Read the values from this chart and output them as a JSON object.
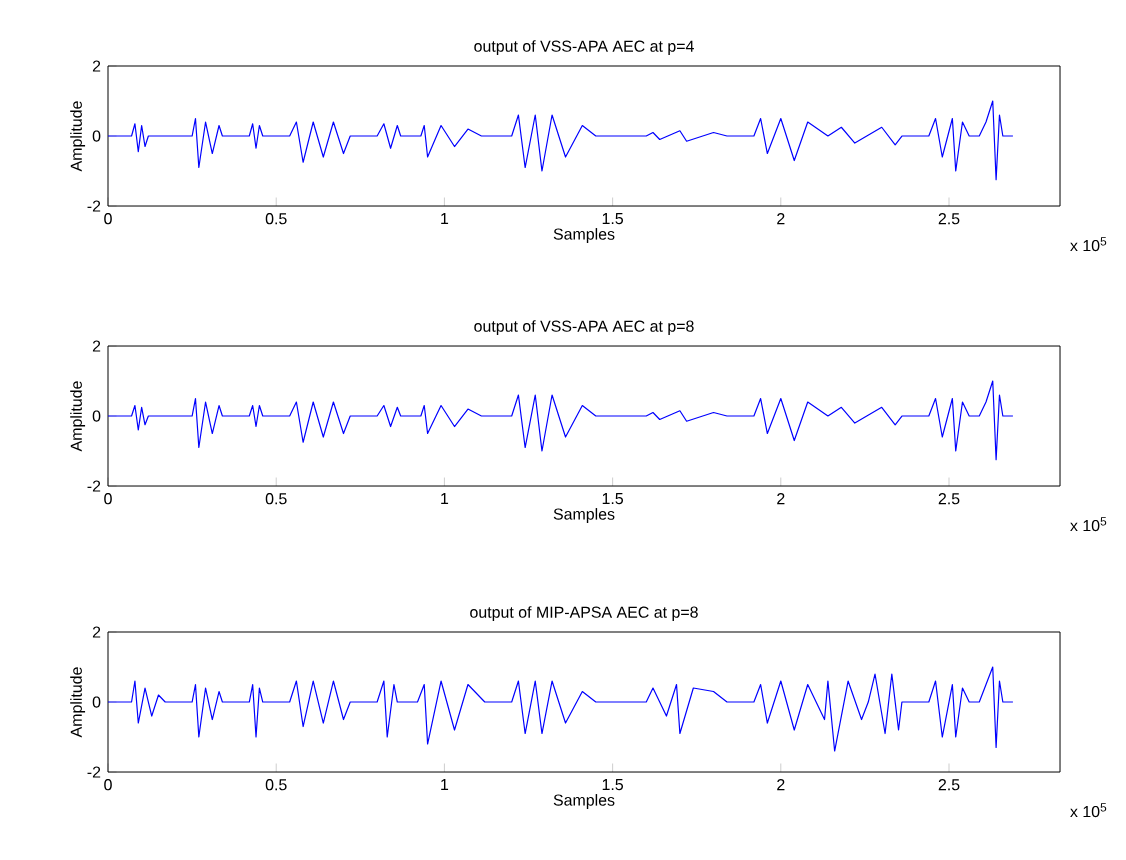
{
  "chart_data": [
    {
      "type": "line",
      "title": "output of VSS-APA AEC at p=4",
      "xlabel": "Samples",
      "ylabel": "Amplitude",
      "annotations": [
        "x 10$^{5}$"
      ],
      "xlim": [
        0,
        2.83
      ],
      "ylim": [
        -2,
        2
      ],
      "yticks": [
        -2,
        0,
        2
      ],
      "xticks": [
        0,
        0.5,
        1,
        1.5,
        2,
        2.5
      ],
      "series": [
        {
          "color": "#0000ff",
          "x": [
            0,
            0.07,
            0.08,
            0.09,
            0.1,
            0.11,
            0.12,
            0.25,
            0.26,
            0.27,
            0.29,
            0.31,
            0.33,
            0.34,
            0.42,
            0.43,
            0.44,
            0.45,
            0.46,
            0.54,
            0.56,
            0.58,
            0.61,
            0.64,
            0.67,
            0.7,
            0.72,
            0.8,
            0.82,
            0.84,
            0.86,
            0.87,
            0.93,
            0.94,
            0.95,
            0.99,
            1.03,
            1.07,
            1.11,
            1.2,
            1.22,
            1.24,
            1.27,
            1.29,
            1.32,
            1.36,
            1.41,
            1.45,
            1.6,
            1.62,
            1.64,
            1.7,
            1.72,
            1.8,
            1.84,
            1.92,
            1.94,
            1.96,
            2.0,
            2.04,
            2.08,
            2.14,
            2.18,
            2.22,
            2.3,
            2.34,
            2.36,
            2.44,
            2.46,
            2.48,
            2.51,
            2.52,
            2.54,
            2.56,
            2.59,
            2.61,
            2.63,
            2.64,
            2.65,
            2.66,
            2.69
          ],
          "values": [
            0,
            0,
            0.35,
            -0.45,
            0.3,
            -0.3,
            0,
            0,
            0.5,
            -0.9,
            0.4,
            -0.5,
            0.3,
            0,
            0,
            0.35,
            -0.35,
            0.3,
            0,
            0,
            0.4,
            -0.75,
            0.4,
            -0.6,
            0.4,
            -0.5,
            0,
            0,
            0.35,
            -0.35,
            0.3,
            0,
            0,
            0.3,
            -0.6,
            0.3,
            -0.3,
            0.2,
            0,
            0,
            0.6,
            -0.9,
            0.6,
            -1.0,
            0.6,
            -0.6,
            0.3,
            0,
            0,
            0.1,
            -0.1,
            0.15,
            -0.15,
            0.1,
            0,
            0,
            0.5,
            -0.5,
            0.5,
            -0.7,
            0.4,
            0,
            0.25,
            -0.2,
            0.25,
            -0.25,
            0,
            0,
            0.5,
            -0.6,
            0.5,
            -1.0,
            0.4,
            0,
            0,
            0.4,
            1.0,
            -1.25,
            0.6,
            0,
            0
          ]
        }
      ]
    },
    {
      "type": "line",
      "title": "output of VSS-APA AEC at p=8",
      "xlabel": "Samples",
      "ylabel": "Amplitude",
      "annotations": [
        "x 10$^{5}$"
      ],
      "xlim": [
        0,
        2.83
      ],
      "ylim": [
        -2,
        2
      ],
      "yticks": [
        -2,
        0,
        2
      ],
      "xticks": [
        0,
        0.5,
        1,
        1.5,
        2,
        2.5
      ],
      "series": [
        {
          "color": "#0000ff",
          "x": [
            0,
            0.07,
            0.08,
            0.09,
            0.1,
            0.11,
            0.12,
            0.25,
            0.26,
            0.27,
            0.29,
            0.31,
            0.33,
            0.34,
            0.42,
            0.43,
            0.44,
            0.45,
            0.46,
            0.54,
            0.56,
            0.58,
            0.61,
            0.64,
            0.67,
            0.7,
            0.72,
            0.8,
            0.82,
            0.84,
            0.86,
            0.87,
            0.93,
            0.94,
            0.95,
            0.99,
            1.03,
            1.07,
            1.11,
            1.2,
            1.22,
            1.24,
            1.27,
            1.29,
            1.32,
            1.36,
            1.41,
            1.45,
            1.6,
            1.62,
            1.64,
            1.7,
            1.72,
            1.8,
            1.84,
            1.92,
            1.94,
            1.96,
            2.0,
            2.04,
            2.08,
            2.14,
            2.18,
            2.22,
            2.3,
            2.34,
            2.36,
            2.44,
            2.46,
            2.48,
            2.51,
            2.52,
            2.54,
            2.56,
            2.59,
            2.61,
            2.63,
            2.64,
            2.65,
            2.66,
            2.69
          ],
          "values": [
            0,
            0,
            0.3,
            -0.4,
            0.25,
            -0.25,
            0,
            0,
            0.5,
            -0.9,
            0.4,
            -0.5,
            0.3,
            0,
            0,
            0.3,
            -0.3,
            0.3,
            0,
            0,
            0.4,
            -0.75,
            0.4,
            -0.6,
            0.4,
            -0.5,
            0,
            0,
            0.3,
            -0.3,
            0.25,
            0,
            0,
            0.3,
            -0.5,
            0.3,
            -0.3,
            0.2,
            0,
            0,
            0.6,
            -0.9,
            0.6,
            -1.0,
            0.6,
            -0.6,
            0.3,
            0,
            0,
            0.1,
            -0.1,
            0.15,
            -0.15,
            0.1,
            0,
            0,
            0.5,
            -0.5,
            0.5,
            -0.7,
            0.4,
            0,
            0.25,
            -0.2,
            0.25,
            -0.25,
            0,
            0,
            0.5,
            -0.6,
            0.5,
            -1.0,
            0.4,
            0,
            0,
            0.4,
            1.0,
            -1.25,
            0.6,
            0,
            0
          ]
        }
      ]
    },
    {
      "type": "line",
      "title": "output of MIP-APSA AEC at p=8",
      "xlabel": "Samples",
      "ylabel": "Amplitude",
      "annotations": [
        "x 10$^{5}$"
      ],
      "xlim": [
        0,
        2.83
      ],
      "ylim": [
        -2,
        2
      ],
      "yticks": [
        -2,
        0,
        2
      ],
      "xticks": [
        0,
        0.5,
        1,
        1.5,
        2,
        2.5
      ],
      "series": [
        {
          "color": "#0000ff",
          "x": [
            0,
            0.07,
            0.08,
            0.09,
            0.11,
            0.13,
            0.15,
            0.17,
            0.25,
            0.26,
            0.27,
            0.29,
            0.31,
            0.33,
            0.34,
            0.42,
            0.43,
            0.44,
            0.45,
            0.46,
            0.54,
            0.56,
            0.58,
            0.61,
            0.64,
            0.67,
            0.7,
            0.72,
            0.8,
            0.82,
            0.83,
            0.85,
            0.86,
            0.92,
            0.94,
            0.95,
            0.99,
            1.03,
            1.07,
            1.12,
            1.2,
            1.22,
            1.24,
            1.27,
            1.29,
            1.32,
            1.36,
            1.41,
            1.45,
            1.6,
            1.62,
            1.66,
            1.69,
            1.7,
            1.74,
            1.8,
            1.84,
            1.92,
            1.94,
            1.96,
            2.0,
            2.04,
            2.08,
            2.13,
            2.14,
            2.16,
            2.2,
            2.24,
            2.26,
            2.28,
            2.31,
            2.33,
            2.35,
            2.36,
            2.44,
            2.46,
            2.48,
            2.51,
            2.52,
            2.54,
            2.56,
            2.59,
            2.61,
            2.63,
            2.64,
            2.65,
            2.66,
            2.69
          ],
          "values": [
            0,
            0,
            0.6,
            -0.6,
            0.4,
            -0.4,
            0.2,
            0,
            0,
            0.5,
            -1.0,
            0.4,
            -0.5,
            0.3,
            0,
            0,
            0.5,
            -1.0,
            0.4,
            0,
            0,
            0.6,
            -0.7,
            0.6,
            -0.6,
            0.6,
            -0.5,
            0,
            0,
            0.6,
            -1.0,
            0.5,
            0,
            0,
            0.5,
            -1.2,
            0.6,
            -0.8,
            0.5,
            0,
            0,
            0.6,
            -0.9,
            0.6,
            -0.9,
            0.6,
            -0.6,
            0.3,
            0,
            0,
            0.4,
            -0.4,
            0.5,
            -0.9,
            0.4,
            0.3,
            0,
            0,
            0.5,
            -0.6,
            0.6,
            -0.8,
            0.5,
            -0.5,
            0.6,
            -1.4,
            0.6,
            -0.5,
            0,
            0.8,
            -0.9,
            0.8,
            -0.8,
            0,
            0,
            0.6,
            -1.0,
            0.5,
            -1.0,
            0.4,
            0,
            0,
            0.5,
            1.0,
            -1.3,
            0.6,
            0,
            0
          ]
        }
      ]
    }
  ]
}
